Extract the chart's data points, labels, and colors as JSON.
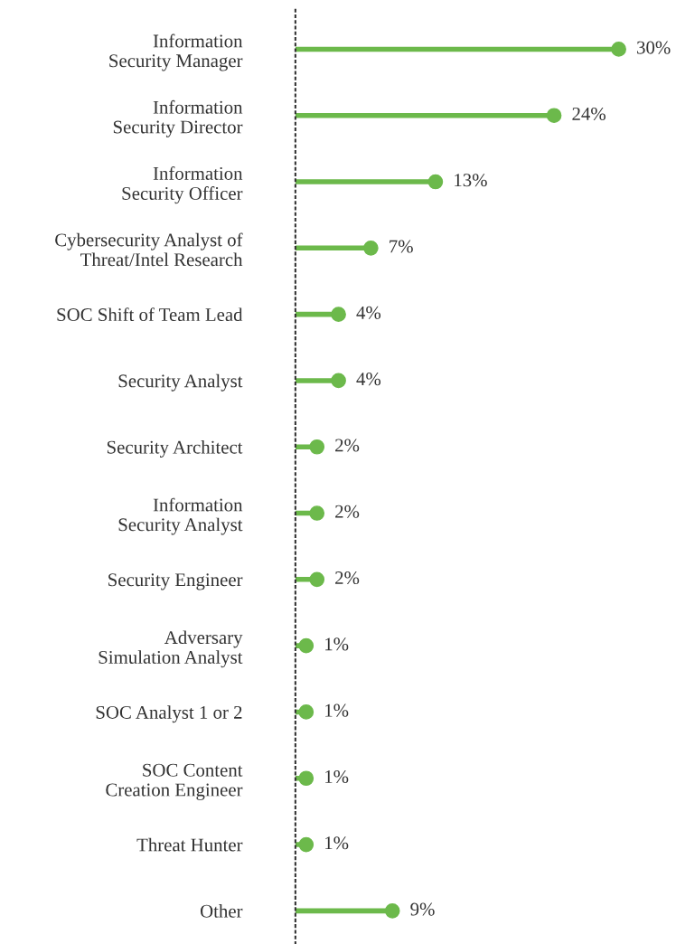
{
  "chart_data": {
    "type": "lollipop",
    "orientation": "horizontal",
    "categories": [
      "Information\nSecurity Manager",
      "Information\nSecurity Director",
      "Information\nSecurity Officer",
      "Cybersecurity Analyst of\nThreat/Intel Research",
      "SOC Shift of Team Lead",
      "Security Analyst",
      "Security Architect",
      "Information\nSecurity Analyst",
      "Security Engineer",
      "Adversary\nSimulation Analyst",
      "SOC Analyst 1 or 2",
      "SOC Content\nCreation Engineer",
      "Threat Hunter",
      "Other"
    ],
    "values": [
      30,
      24,
      13,
      7,
      4,
      4,
      2,
      2,
      2,
      1,
      1,
      1,
      1,
      9
    ],
    "value_labels": [
      "30%",
      "24%",
      "13%",
      "7%",
      "4%",
      "4%",
      "2%",
      "2%",
      "2%",
      "1%",
      "1%",
      "1%",
      "1%",
      "9%"
    ],
    "color": "#6cb94b",
    "marker": "circle",
    "tick_labels": "y"
  }
}
